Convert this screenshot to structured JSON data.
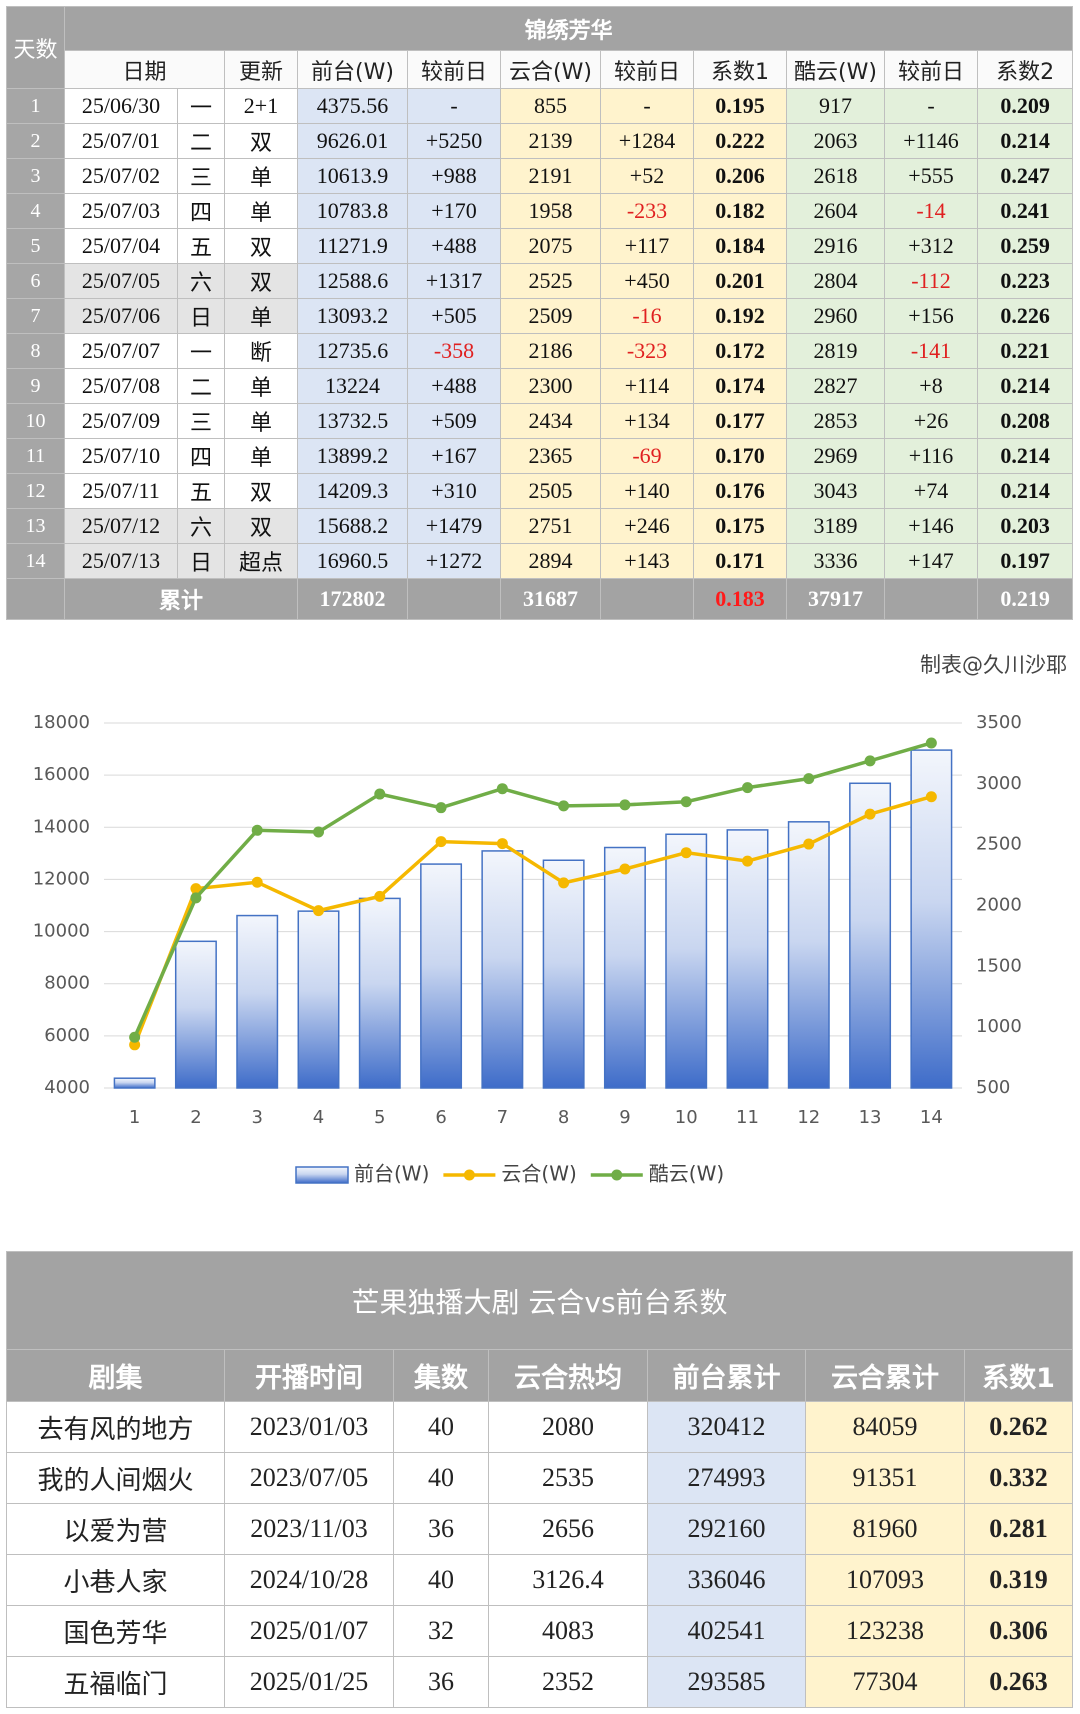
{
  "table1": {
    "title": "锦绣芳华",
    "corner": "天数",
    "headers": [
      "日期",
      "更新",
      "前台(W)",
      "较前日",
      "云合(W)",
      "较前日",
      "系数1",
      "酷云(W)",
      "较前日",
      "系数2"
    ],
    "rows": [
      [
        "1",
        "25/06/30",
        "一",
        "2+1",
        "4375.56",
        "-",
        "855",
        "-",
        "0.195",
        "917",
        "-",
        "0.209"
      ],
      [
        "2",
        "25/07/01",
        "二",
        "双",
        "9626.01",
        "+5250",
        "2139",
        "+1284",
        "0.222",
        "2063",
        "+1146",
        "0.214"
      ],
      [
        "3",
        "25/07/02",
        "三",
        "单",
        "10613.9",
        "+988",
        "2191",
        "+52",
        "0.206",
        "2618",
        "+555",
        "0.247"
      ],
      [
        "4",
        "25/07/03",
        "四",
        "单",
        "10783.8",
        "+170",
        "1958",
        "-233",
        "0.182",
        "2604",
        "-14",
        "0.241"
      ],
      [
        "5",
        "25/07/04",
        "五",
        "双",
        "11271.9",
        "+488",
        "2075",
        "+117",
        "0.184",
        "2916",
        "+312",
        "0.259"
      ],
      [
        "6",
        "25/07/05",
        "六",
        "双",
        "12588.6",
        "+1317",
        "2525",
        "+450",
        "0.201",
        "2804",
        "-112",
        "0.223"
      ],
      [
        "7",
        "25/07/06",
        "日",
        "单",
        "13093.2",
        "+505",
        "2509",
        "-16",
        "0.192",
        "2960",
        "+156",
        "0.226"
      ],
      [
        "8",
        "25/07/07",
        "一",
        "断",
        "12735.6",
        "-358",
        "2186",
        "-323",
        "0.172",
        "2819",
        "-141",
        "0.221"
      ],
      [
        "9",
        "25/07/08",
        "二",
        "单",
        "13224",
        "+488",
        "2300",
        "+114",
        "0.174",
        "2827",
        "+8",
        "0.214"
      ],
      [
        "10",
        "25/07/09",
        "三",
        "单",
        "13732.5",
        "+509",
        "2434",
        "+134",
        "0.177",
        "2853",
        "+26",
        "0.208"
      ],
      [
        "11",
        "25/07/10",
        "四",
        "单",
        "13899.2",
        "+167",
        "2365",
        "-69",
        "0.170",
        "2969",
        "+116",
        "0.214"
      ],
      [
        "12",
        "25/07/11",
        "五",
        "双",
        "14209.3",
        "+310",
        "2505",
        "+140",
        "0.176",
        "3043",
        "+74",
        "0.214"
      ],
      [
        "13",
        "25/07/12",
        "六",
        "双",
        "15688.2",
        "+1479",
        "2751",
        "+246",
        "0.175",
        "3189",
        "+146",
        "0.203"
      ],
      [
        "14",
        "25/07/13",
        "日",
        "超点",
        "16960.5",
        "+1272",
        "2894",
        "+143",
        "0.171",
        "3336",
        "+147",
        "0.197"
      ]
    ],
    "total_label": "累计",
    "total_cells": [
      "172802",
      "31687",
      "0.183",
      "37917",
      "0.219"
    ]
  },
  "chart_data": {
    "type": "combo",
    "credit": "制表@久川沙耶",
    "categories": [
      "1",
      "2",
      "3",
      "4",
      "5",
      "6",
      "7",
      "8",
      "9",
      "10",
      "11",
      "12",
      "13",
      "14"
    ],
    "ylim": [
      4000,
      18000
    ],
    "yticks": [
      4000,
      6000,
      8000,
      10000,
      12000,
      14000,
      16000,
      18000
    ],
    "y2lim": [
      500,
      3500
    ],
    "y2ticks": [
      500,
      1000,
      1500,
      2000,
      2500,
      3000,
      3500
    ],
    "grid": true,
    "legend": "bottom",
    "series": [
      {
        "name": "前台(W)",
        "type": "bar",
        "color": "#4472c4",
        "values": [
          4375.56,
          9626.01,
          10613.9,
          10783.8,
          11271.9,
          12588.6,
          13093.2,
          12735.6,
          13224,
          13732.5,
          13899.2,
          14209.3,
          15688.2,
          16960.5
        ]
      },
      {
        "name": "云合(W)",
        "type": "line",
        "axis": "y2",
        "color": "#f5b800",
        "values": [
          855,
          2139,
          2191,
          1958,
          2075,
          2525,
          2509,
          2186,
          2300,
          2434,
          2365,
          2505,
          2751,
          2894
        ]
      },
      {
        "name": "酷云(W)",
        "type": "line",
        "axis": "y2",
        "color": "#70ad47",
        "values": [
          917,
          2063,
          2618,
          2604,
          2916,
          2804,
          2960,
          2819,
          2827,
          2853,
          2969,
          3043,
          3189,
          3336
        ]
      }
    ]
  },
  "table2": {
    "title": "芒果独播大剧 云合vs前台系数",
    "headers": [
      "剧集",
      "开播时间",
      "集数",
      "云合热均",
      "前台累计",
      "云合累计",
      "系数1"
    ],
    "rows": [
      [
        "去有风的地方",
        "2023/01/03",
        "40",
        "2080",
        "320412",
        "84059",
        "0.262"
      ],
      [
        "我的人间烟火",
        "2023/07/05",
        "40",
        "2535",
        "274993",
        "91351",
        "0.332"
      ],
      [
        "以爱为营",
        "2023/11/03",
        "36",
        "2656",
        "292160",
        "81960",
        "0.281"
      ],
      [
        "小巷人家",
        "2024/10/28",
        "40",
        "3126.4",
        "336046",
        "107093",
        "0.319"
      ],
      [
        "国色芳华",
        "2025/01/07",
        "32",
        "4083",
        "402541",
        "123238",
        "0.306"
      ],
      [
        "五福临门",
        "2025/01/25",
        "36",
        "2352",
        "293585",
        "77304",
        "0.263"
      ]
    ]
  }
}
